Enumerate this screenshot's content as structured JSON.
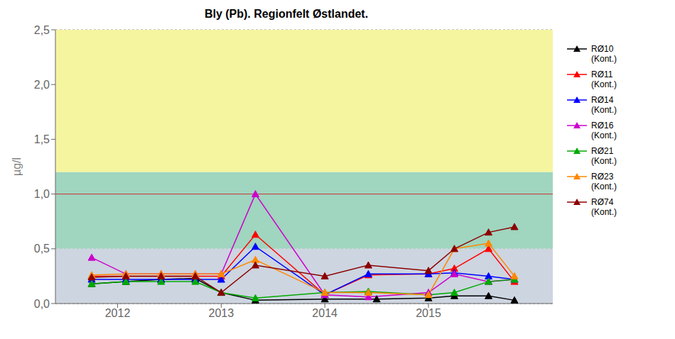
{
  "chart_data": {
    "type": "line",
    "title": "Bly (Pb).  Regionfelt Østlandet.",
    "ylabel": "µg/l",
    "xlim": [
      2011.4,
      2016.2
    ],
    "xticks": [
      2012,
      2013,
      2014,
      2015
    ],
    "ylim": [
      0,
      2.5
    ],
    "yticks": [
      {
        "value": 0.0,
        "label": "0,0"
      },
      {
        "value": 0.5,
        "label": "0,5"
      },
      {
        "value": 1.0,
        "label": "1,0"
      },
      {
        "value": 1.5,
        "label": "1,5"
      },
      {
        "value": 2.0,
        "label": "2,0"
      },
      {
        "value": 2.5,
        "label": "2,5"
      }
    ],
    "grid": "y",
    "legend": "right",
    "marker": "triangle",
    "bands": [
      {
        "from": 1.2,
        "to": 2.5,
        "color": "#f5f5a0"
      },
      {
        "from": 0.5,
        "to": 1.2,
        "color": "#a0d5bf"
      },
      {
        "from": 0.0,
        "to": 0.5,
        "color": "#cdd5e0"
      }
    ],
    "hlines": [
      {
        "value": 1.0,
        "color": "#cc3333"
      }
    ],
    "series": [
      {
        "name": "RØ10\n(Kont.)",
        "color": "#000000",
        "x": [
          2011.75,
          2012.08,
          2012.42,
          2012.75,
          2013.0,
          2013.33,
          2014.0,
          2014.5,
          2015.0,
          2015.25,
          2015.58,
          2015.83
        ],
        "values": [
          0.18,
          0.2,
          0.22,
          0.23,
          0.1,
          0.03,
          0.04,
          0.04,
          0.05,
          0.07,
          0.07,
          0.03
        ]
      },
      {
        "name": "RØ11\n(Kont.)",
        "color": "#ff0000",
        "x": [
          2011.75,
          2012.08,
          2012.42,
          2012.75,
          2013.0,
          2013.33,
          2014.0,
          2014.42,
          2015.0,
          2015.25,
          2015.58,
          2015.83
        ],
        "values": [
          0.25,
          0.25,
          0.25,
          0.25,
          0.25,
          0.63,
          0.08,
          0.26,
          0.27,
          0.32,
          0.5,
          0.2
        ]
      },
      {
        "name": "RØ14\n(Kont.)",
        "color": "#0000ff",
        "x": [
          2011.75,
          2012.08,
          2012.42,
          2012.75,
          2013.0,
          2013.33,
          2014.0,
          2014.42,
          2015.0,
          2015.25,
          2015.58,
          2015.83
        ],
        "values": [
          0.22,
          0.22,
          0.22,
          0.22,
          0.22,
          0.52,
          0.08,
          0.27,
          0.27,
          0.28,
          0.25,
          0.22
        ]
      },
      {
        "name": "RØ16\n(Kont.)",
        "color": "#cc00cc",
        "x": [
          2011.75,
          2012.08,
          2012.42,
          2012.75,
          2013.0,
          2013.33,
          2014.0,
          2014.42,
          2015.0,
          2015.25,
          2015.58,
          2015.83
        ],
        "values": [
          0.42,
          0.27,
          0.27,
          0.27,
          0.27,
          1.0,
          0.08,
          0.06,
          0.1,
          0.27,
          0.2,
          0.22
        ]
      },
      {
        "name": "RØ21\n(Kont.)",
        "color": "#00aa00",
        "x": [
          2011.75,
          2012.08,
          2012.42,
          2012.75,
          2013.0,
          2013.33,
          2014.0,
          2014.42,
          2015.0,
          2015.25,
          2015.58,
          2015.83
        ],
        "values": [
          0.18,
          0.2,
          0.2,
          0.2,
          0.1,
          0.05,
          0.1,
          0.11,
          0.08,
          0.1,
          0.2,
          0.22
        ]
      },
      {
        "name": "RØ23\n(Kont.)",
        "color": "#ff8800",
        "x": [
          2011.75,
          2012.08,
          2012.42,
          2012.75,
          2013.0,
          2013.33,
          2014.0,
          2014.42,
          2015.0,
          2015.25,
          2015.58,
          2015.83
        ],
        "values": [
          0.26,
          0.27,
          0.27,
          0.27,
          0.27,
          0.4,
          0.1,
          0.1,
          0.08,
          0.5,
          0.55,
          0.25
        ]
      },
      {
        "name": "RØ74\n(Kont.)",
        "color": "#8b0000",
        "x": [
          2011.75,
          2012.08,
          2012.42,
          2012.75,
          2013.0,
          2013.33,
          2014.0,
          2014.42,
          2015.0,
          2015.25,
          2015.58,
          2015.83
        ],
        "values": [
          0.24,
          0.25,
          0.25,
          0.25,
          0.1,
          0.35,
          0.25,
          0.35,
          0.3,
          0.5,
          0.65,
          0.7
        ]
      }
    ]
  }
}
